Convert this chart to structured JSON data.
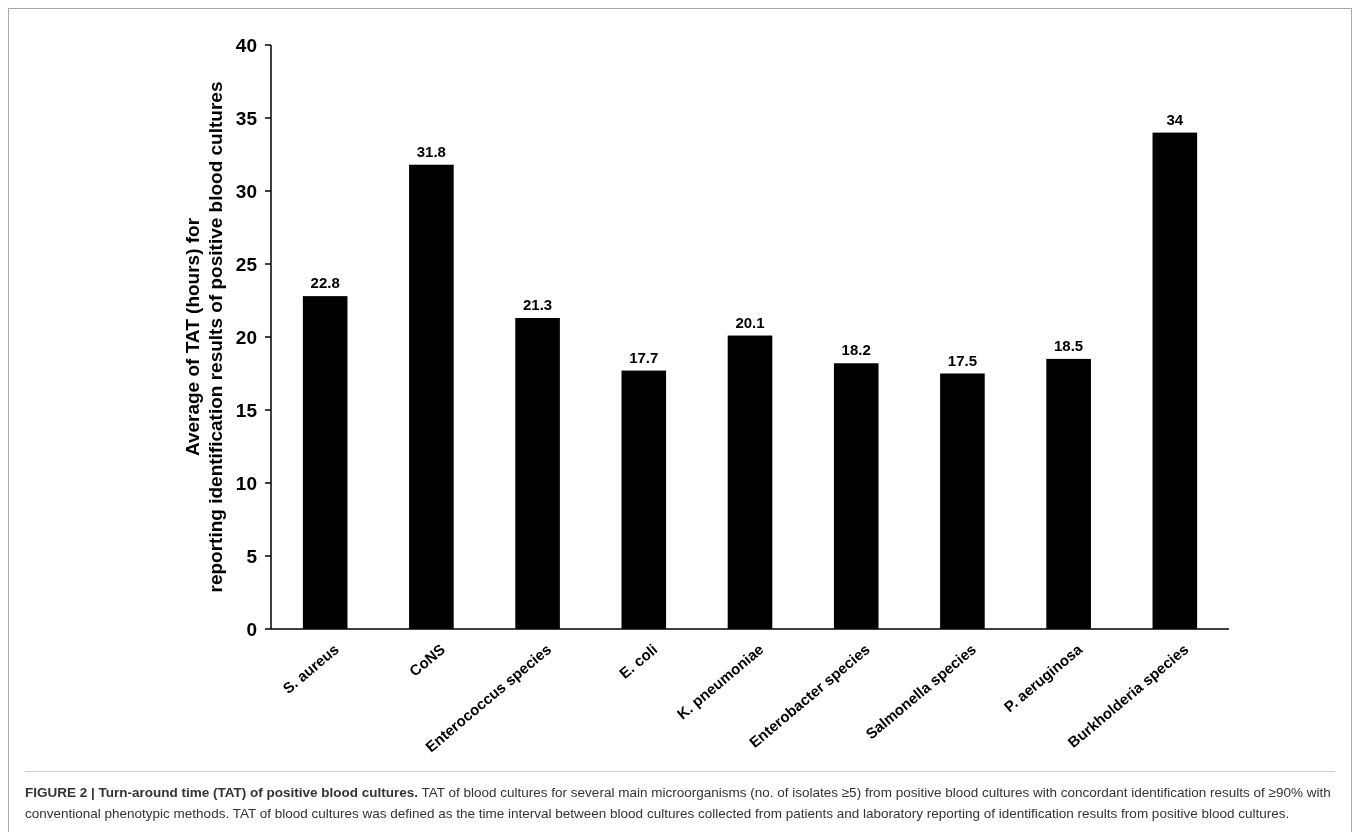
{
  "chart_data": {
    "type": "bar",
    "title": "FIGURE 2 | Turn-around time (TAT) of positive blood cultures.",
    "annotations": [
      "TAT of blood cultures for several main microorganisms (no. of isolates ≥5) from positive blood cultures with concordant identification results of ≥90% with conventional phenotypic methods. TAT of blood cultures was defined as the time interval between blood cultures collected from patients and laboratory reporting of identification results from positive blood cultures."
    ],
    "ylabel": "Average of TAT (hours) for reporting identification results of positive blood cultures",
    "categories": [
      "S. aureus",
      "CoNS",
      "Enterococcus species",
      "E. coli",
      "K. pneumoniae",
      "Enterobacter species",
      "Salmonella species",
      "P. aeruginosa",
      "Burkholderia species"
    ],
    "values": [
      22.8,
      31.8,
      21.3,
      17.7,
      20.1,
      18.2,
      17.5,
      18.5,
      34
    ],
    "color": "#000000",
    "data_labels": true,
    "ylim": [
      0,
      40
    ],
    "yticks": [
      0,
      5,
      10,
      15,
      20,
      25,
      30,
      35,
      40
    ],
    "grid": false
  }
}
